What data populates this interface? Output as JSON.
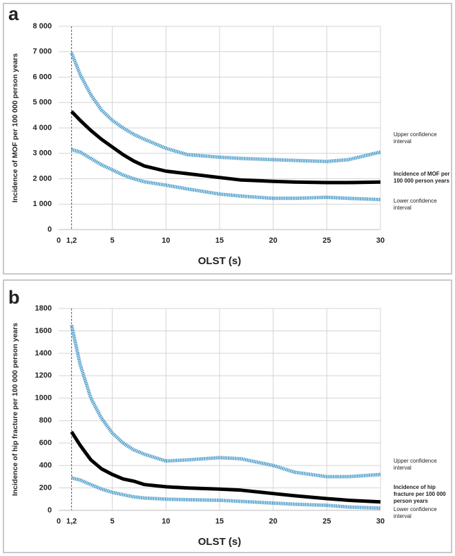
{
  "chart_data": [
    {
      "type": "line",
      "panel_label": "a",
      "x_label": "OLST (s)",
      "y_label": "Incidence of MOF per 100 000 person years",
      "x": [
        1.2,
        2,
        3,
        4,
        5,
        6,
        7,
        8,
        10,
        12,
        15,
        17,
        20,
        22,
        25,
        27,
        30
      ],
      "series": [
        {
          "name": "Upper confidence interval",
          "color": "#4a9ccb",
          "values": [
            6950,
            6100,
            5300,
            4700,
            4300,
            4000,
            3750,
            3550,
            3200,
            2950,
            2850,
            2800,
            2750,
            2720,
            2680,
            2750,
            3050
          ]
        },
        {
          "name": "Incidence of MOF per 100 000 person years",
          "color": "#000000",
          "values": [
            4650,
            4300,
            3900,
            3550,
            3250,
            2950,
            2700,
            2500,
            2300,
            2200,
            2050,
            1950,
            1900,
            1870,
            1850,
            1850,
            1870
          ]
        },
        {
          "name": "Lower confidence interval",
          "color": "#4a9ccb",
          "values": [
            3150,
            3050,
            2800,
            2550,
            2350,
            2150,
            2000,
            1880,
            1750,
            1600,
            1400,
            1320,
            1230,
            1230,
            1270,
            1230,
            1180
          ]
        }
      ],
      "xlim": [
        0,
        30
      ],
      "xticks": [
        0,
        {
          "value": 1.2,
          "label": "1,2"
        },
        5,
        10,
        15,
        20,
        25,
        30
      ],
      "ylim": [
        0,
        8000
      ],
      "yticks": [
        0,
        {
          "value": 1000,
          "label": "1 000"
        },
        {
          "value": 2000,
          "label": "2 000"
        },
        {
          "value": 3000,
          "label": "3 000"
        },
        {
          "value": 4000,
          "label": "4 000"
        },
        {
          "value": 5000,
          "label": "5 000"
        },
        {
          "value": 6000,
          "label": "6 000"
        },
        {
          "value": 7000,
          "label": "7 000"
        },
        {
          "value": 8000,
          "label": "8 000"
        }
      ],
      "grid": true
    },
    {
      "type": "line",
      "panel_label": "b",
      "x_label": "OLST (s)",
      "y_label": "Incidence of hip fracture per 100 000 person years",
      "x": [
        1.2,
        2,
        3,
        4,
        5,
        6,
        7,
        8,
        10,
        12,
        15,
        17,
        20,
        22,
        25,
        27,
        30
      ],
      "series": [
        {
          "name": "Upper confidence interval",
          "color": "#4a9ccb",
          "values": [
            1650,
            1300,
            1000,
            820,
            690,
            600,
            540,
            500,
            440,
            450,
            470,
            460,
            400,
            340,
            300,
            300,
            320
          ]
        },
        {
          "name": "Incidence of hip fracture per 100 000 person years",
          "color": "#000000",
          "values": [
            700,
            580,
            450,
            370,
            320,
            280,
            260,
            230,
            210,
            200,
            190,
            180,
            150,
            130,
            105,
            90,
            75
          ]
        },
        {
          "name": "Lower confidence interval",
          "color": "#4a9ccb",
          "values": [
            290,
            270,
            230,
            190,
            160,
            140,
            120,
            110,
            100,
            95,
            90,
            80,
            65,
            55,
            45,
            30,
            20
          ]
        }
      ],
      "xlim": [
        0,
        30
      ],
      "xticks": [
        0,
        {
          "value": 1.2,
          "label": "1,2"
        },
        5,
        10,
        15,
        20,
        25,
        30
      ],
      "ylim": [
        0,
        1800
      ],
      "yticks": [
        0,
        200,
        400,
        600,
        800,
        {
          "value": 1000,
          "label": "1000"
        },
        {
          "value": 1200,
          "label": "1200"
        },
        {
          "value": 1400,
          "label": "1400"
        },
        {
          "value": 1600,
          "label": "1600"
        },
        {
          "value": 1800,
          "label": "1800"
        }
      ],
      "grid": true
    }
  ]
}
